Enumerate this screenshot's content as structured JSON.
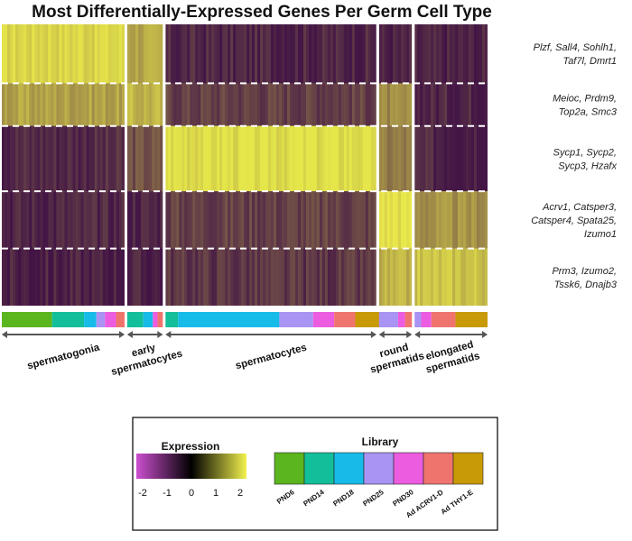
{
  "chart_data": {
    "type": "heatmap",
    "title": "Most Differentially-Expressed Genes Per Germ Cell Type",
    "cell_types": [
      {
        "name": "spermatogonia",
        "lines": [
          "spermatogonia"
        ],
        "weight": 138
      },
      {
        "name": "early spermatocytes",
        "lines": [
          "early",
          "spermatocytes"
        ],
        "weight": 40
      },
      {
        "name": "spermatocytes",
        "lines": [
          "spermatocytes"
        ],
        "weight": 237
      },
      {
        "name": "round spermatids",
        "lines": [
          "round",
          "spermatids"
        ],
        "weight": 37
      },
      {
        "name": "elongated spermatids",
        "lines": [
          "elongated",
          "spermatids"
        ],
        "weight": 82
      }
    ],
    "gene_blocks": [
      {
        "lines": [
          "Plzf, Sall4, Sohlh1,",
          "Taf7l, Dmrt1"
        ],
        "weight": 65
      },
      {
        "lines": [
          "Meioc, Prdm9,",
          "Top2a, Smc3"
        ],
        "weight": 47
      },
      {
        "lines": [
          "Sycp1, Sycp2,",
          "Sycp3, Hzafx"
        ],
        "weight": 72
      },
      {
        "lines": [
          "Acrv1, Catsper3,",
          "Catsper4, Spata25,",
          "Izumo1"
        ],
        "weight": 63
      },
      {
        "lines": [
          "Prm3, Izumo2,",
          "Tssk6, Dnajb3"
        ],
        "weight": 63
      }
    ],
    "mean_expression": [
      [
        1.7,
        0.8,
        -1.5,
        -1.6,
        -1.6
      ],
      [
        0.7,
        1.0,
        -1.0,
        0.2,
        -1.5
      ],
      [
        -1.4,
        -0.7,
        1.8,
        0.0,
        -1.5
      ],
      [
        -1.5,
        -1.5,
        -1.0,
        1.9,
        0.4
      ],
      [
        -1.6,
        -1.6,
        -1.2,
        0.9,
        1.3
      ]
    ],
    "library_bars": [
      [
        {
          "lib": "PND6",
          "frac": 0.41
        },
        {
          "lib": "PND14",
          "frac": 0.26
        },
        {
          "lib": "PND18",
          "frac": 0.1
        },
        {
          "lib": "PND25",
          "frac": 0.07
        },
        {
          "lib": "PND30",
          "frac": 0.09
        },
        {
          "lib": "Ad ACRV1-D",
          "frac": 0.07
        }
      ]
    ],
    "library_bars_rest": [
      [
        {
          "lib": "PND14",
          "frac": 0.45
        },
        {
          "lib": "PND18",
          "frac": 0.27
        },
        {
          "lib": "PND30",
          "frac": 0.13
        },
        {
          "lib": "Ad ACRV1-D",
          "frac": 0.15
        }
      ],
      [
        {
          "lib": "PND14",
          "frac": 0.06
        },
        {
          "lib": "PND18",
          "frac": 0.48
        },
        {
          "lib": "PND25",
          "frac": 0.16
        },
        {
          "lib": "PND30",
          "frac": 0.1
        },
        {
          "lib": "Ad ACRV1-D",
          "frac": 0.1
        },
        {
          "lib": "Ad THY1-E",
          "frac": 0.16
        }
      ],
      [
        {
          "lib": "PND25",
          "frac": 0.58
        },
        {
          "lib": "PND30",
          "frac": 0.21
        },
        {
          "lib": "Ad ACRV1-D",
          "frac": 0.21
        }
      ],
      [
        {
          "lib": "PND25",
          "frac": 0.09
        },
        {
          "lib": "PND30",
          "frac": 0.14
        },
        {
          "lib": "Ad ACRV1-D",
          "frac": 0.33
        },
        {
          "lib": "Ad THY1-E",
          "frac": 0.44
        }
      ]
    ],
    "expression_legend": {
      "title": "Expression",
      "range": [
        -2,
        2
      ],
      "ticks": [
        "-2",
        "-1",
        "0",
        "1",
        "2"
      ],
      "colors": [
        "#cc4fd0",
        "#000000",
        "#f2f24e"
      ]
    },
    "library_legend": {
      "title": "Library",
      "items": [
        {
          "name": "PND6",
          "color": "#5bb51f"
        },
        {
          "name": "PND14",
          "color": "#13bf9a"
        },
        {
          "name": "PND18",
          "color": "#16bbe8"
        },
        {
          "name": "PND25",
          "color": "#a993f3"
        },
        {
          "name": "PND30",
          "color": "#ec5ce0"
        },
        {
          "name": "Ad ACRV1-D",
          "color": "#f0746e"
        },
        {
          "name": "Ad THY1-E",
          "color": "#c99a08"
        }
      ]
    },
    "heatmap_colors": {
      "low": "#3a0a46",
      "high": "#eaeb4a"
    }
  }
}
